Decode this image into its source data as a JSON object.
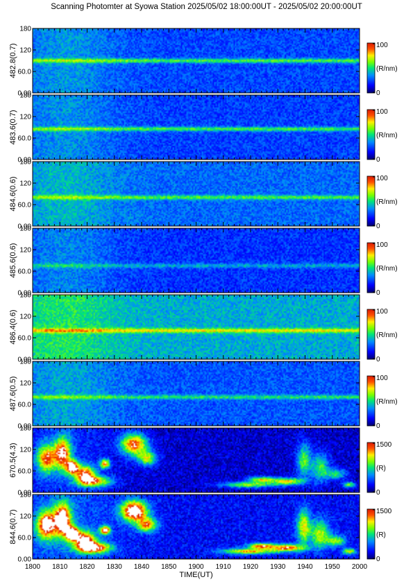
{
  "title": "Scanning Photomter at Syowa Station 2025/05/02 18:00:00UT - 2025/05/02 20:00:00UT",
  "chart_data": {
    "type": "heatmap",
    "xlabel": "TIME(UT)",
    "x_ticks": [
      "1800",
      "1810",
      "1820",
      "1830",
      "1840",
      "1850",
      "1900",
      "1910",
      "1920",
      "1930",
      "1940",
      "1950",
      "2000"
    ],
    "xlim": [
      "18:00",
      "20:00"
    ],
    "panels": [
      {
        "ylabel": "482.8(0.7)",
        "y_ticks": [
          "0.00",
          "60.0",
          "120",
          "180"
        ],
        "ylim": [
          0,
          180
        ],
        "cb_min": "0",
        "cb_max": "100",
        "cb_unit": "(R/nm)",
        "base": 0.25,
        "band": 0.62,
        "band_y": 90
      },
      {
        "ylabel": "483.6(0.7)",
        "y_ticks": [
          "0.00",
          "60.0",
          "120",
          "180"
        ],
        "ylim": [
          0,
          180
        ],
        "cb_min": "0",
        "cb_max": "100",
        "cb_unit": "(R/nm)",
        "base": 0.24,
        "band": 0.6,
        "band_y": 85
      },
      {
        "ylabel": "484.6(0.6)",
        "y_ticks": [
          "0.00",
          "60.0",
          "120",
          "180"
        ],
        "ylim": [
          0,
          180
        ],
        "cb_min": "0",
        "cb_max": "100",
        "cb_unit": "(R/nm)",
        "base": 0.3,
        "band": 0.6,
        "band_y": 80
      },
      {
        "ylabel": "485.6(0.6)",
        "y_ticks": [
          "0.00",
          "60.0",
          "120",
          "180"
        ],
        "ylim": [
          0,
          180
        ],
        "cb_min": "0",
        "cb_max": "100",
        "cb_unit": "(R/nm)",
        "base": 0.22,
        "band": 0.42,
        "band_y": 75
      },
      {
        "ylabel": "486.4(0.6)",
        "y_ticks": [
          "0.00",
          "60.0",
          "120",
          "180"
        ],
        "ylim": [
          0,
          180
        ],
        "cb_min": "0",
        "cb_max": "100",
        "cb_unit": "(R/nm)",
        "base": 0.4,
        "band": 0.8,
        "band_y": 80
      },
      {
        "ylabel": "487.6(0.5)",
        "y_ticks": [
          "0.00",
          "60.0",
          "120",
          "180"
        ],
        "ylim": [
          0,
          180
        ],
        "cb_min": "0",
        "cb_max": "100",
        "cb_unit": "(R/nm)",
        "base": 0.27,
        "band": 0.55,
        "band_y": 80
      },
      {
        "ylabel": "670.5(4.3)",
        "y_ticks": [
          "0.00",
          "60.0",
          "120",
          "180"
        ],
        "ylim": [
          0,
          180
        ],
        "cb_min": "0",
        "cb_max": "1500",
        "cb_unit": "(R)",
        "base": 0.1,
        "band": 0.0,
        "band_y": 0,
        "aurora": true
      },
      {
        "ylabel": "844.6(0.7)",
        "y_ticks": [
          "0.00",
          "60.0",
          "120",
          "180"
        ],
        "ylim": [
          0,
          180
        ],
        "cb_min": "0",
        "cb_max": "1500",
        "cb_unit": "(R)",
        "base": 0.16,
        "band": 0.0,
        "band_y": 0,
        "aurora": true,
        "strong": true
      }
    ]
  }
}
